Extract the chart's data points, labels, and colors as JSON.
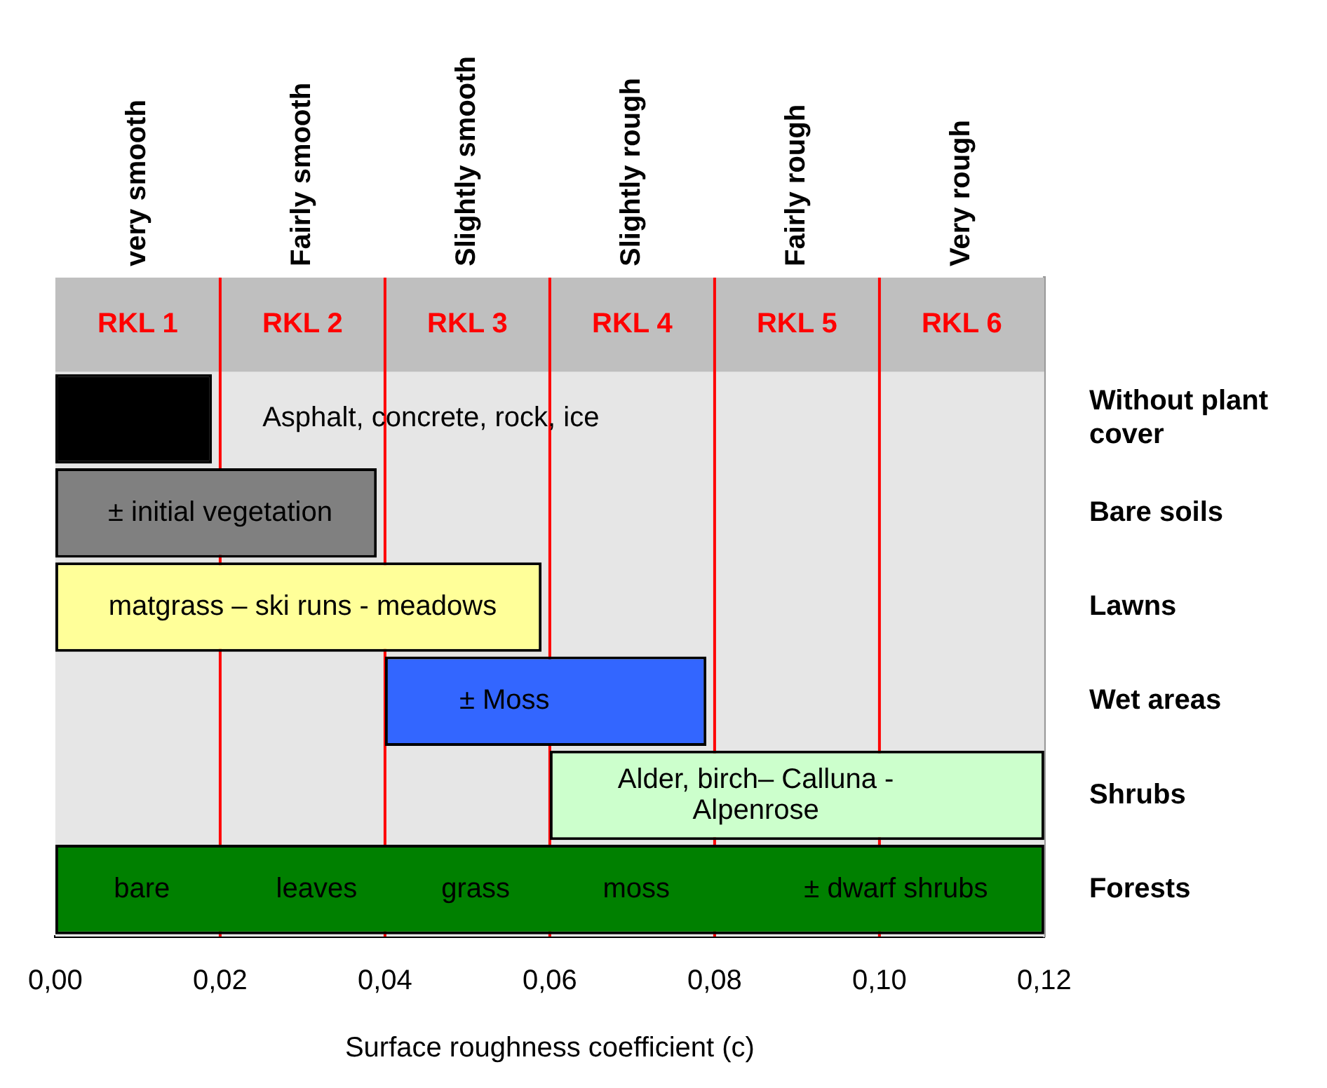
{
  "chart_data": {
    "type": "bar",
    "orientation": "horizontal",
    "xlabel": "Surface roughness coefficient (c)",
    "categories": [
      null,
      "Without plant cover",
      "Bare soils",
      "Lawns",
      "Wet areas",
      "Shrubs",
      "Forests"
    ],
    "values": [
      null,
      0.019,
      0.039,
      0.059,
      0.039,
      0.06,
      0.12
    ],
    "base": [
      null,
      0,
      0,
      0,
      0.04,
      0.06,
      0
    ],
    "colors": [
      null,
      "#000000",
      "#808080",
      "#ffff99",
      "#3366ff",
      "#ccffcc",
      "#008000"
    ],
    "xlim": [
      0,
      0.12
    ],
    "xticks": [
      {
        "value": 0,
        "label": "0,00"
      },
      {
        "value": 0.02,
        "label": "0,02"
      },
      {
        "value": 0.04,
        "label": "0,04"
      },
      {
        "value": 0.06,
        "label": "0,06"
      },
      {
        "value": 0.08,
        "label": "0,08"
      },
      {
        "value": 0.1,
        "label": "0,10"
      },
      {
        "value": 0.12,
        "label": "0,12"
      }
    ],
    "ref_lines": [
      {
        "axis": "x",
        "value": 0.02,
        "color": "#ff0000"
      },
      {
        "axis": "x",
        "value": 0.04,
        "color": "#ff0000"
      },
      {
        "axis": "x",
        "value": 0.06,
        "color": "#ff0000"
      },
      {
        "axis": "x",
        "value": 0.08,
        "color": "#ff0000"
      },
      {
        "axis": "x",
        "value": 0.1,
        "color": "#ff0000"
      }
    ],
    "bands": [
      {
        "axis": "x",
        "from": 0,
        "to": 0.02,
        "label": "RKL 1",
        "color": "#e6e6e6"
      },
      {
        "axis": "x",
        "from": 0.02,
        "to": 0.04,
        "label": "RKL 2",
        "color": "#e6e6e6"
      },
      {
        "axis": "x",
        "from": 0.04,
        "to": 0.06,
        "label": "RKL 3",
        "color": "#e6e6e6"
      },
      {
        "axis": "x",
        "from": 0.06,
        "to": 0.08,
        "label": "RKL 4",
        "color": "#e6e6e6"
      },
      {
        "axis": "x",
        "from": 0.08,
        "to": 0.1,
        "label": "RKL 5",
        "color": "#e6e6e6"
      },
      {
        "axis": "x",
        "from": 0.1,
        "to": 0.12,
        "label": "RKL 6",
        "color": "#e6e6e6"
      }
    ],
    "annotations": [
      "very smooth",
      "Fairly smooth",
      "Slightly smooth",
      "Slightly rough",
      "Fairly rough",
      "Very rough",
      {
        "text": "Asphalt, concrete, rock, ice",
        "x": 0.019,
        "y": "Without plant cover"
      },
      {
        "text": "± initial vegetation",
        "x": 0.02,
        "y": "Bare soils"
      },
      {
        "text": "matgrass – ski runs - meadows",
        "x": 0.03,
        "y": "Lawns"
      },
      {
        "text": "± Moss",
        "x": 0.0545,
        "y": "Wet areas"
      },
      {
        "text": "Alder, birch– Calluna - Alpenrose",
        "x": 0.085,
        "y": "Shrubs"
      },
      {
        "text": "bare",
        "x": 0.0105,
        "y": "Forests"
      },
      {
        "text": "leaves",
        "x": 0.0317,
        "y": "Forests"
      },
      {
        "text": "grass",
        "x": 0.051,
        "y": "Forests"
      },
      {
        "text": "moss",
        "x": 0.0705,
        "y": "Forests"
      },
      {
        "text": "± dwarf shrubs",
        "x": 0.102,
        "y": "Forests"
      }
    ],
    "grid": false,
    "legend": false
  }
}
